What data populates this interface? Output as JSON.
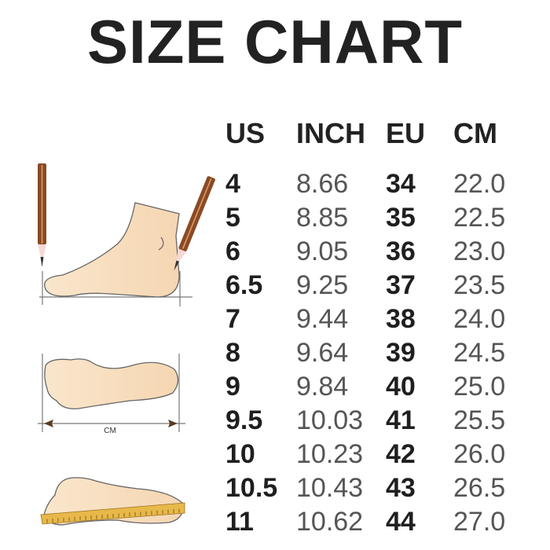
{
  "title": "SIZE CHART",
  "headers": {
    "us": "US",
    "inch": "INCH",
    "eu": "EU",
    "cm": "CM"
  },
  "rows": [
    {
      "us": "4",
      "inch": "8.66",
      "eu": "34",
      "cm": "22.0"
    },
    {
      "us": "5",
      "inch": "8.85",
      "eu": "35",
      "cm": "22.5"
    },
    {
      "us": "6",
      "inch": "9.05",
      "eu": "36",
      "cm": "23.0"
    },
    {
      "us": "6.5",
      "inch": "9.25",
      "eu": "37",
      "cm": "23.5"
    },
    {
      "us": "7",
      "inch": "9.44",
      "eu": "38",
      "cm": "24.0"
    },
    {
      "us": "8",
      "inch": "9.64",
      "eu": "39",
      "cm": "24.5"
    },
    {
      "us": "9",
      "inch": "9.84",
      "eu": "40",
      "cm": "25.0"
    },
    {
      "us": "9.5",
      "inch": "10.03",
      "eu": "41",
      "cm": "25.5"
    },
    {
      "us": "10",
      "inch": "10.23",
      "eu": "42",
      "cm": "26.0"
    },
    {
      "us": "10.5",
      "inch": "10.43",
      "eu": "43",
      "cm": "26.5"
    },
    {
      "us": "11",
      "inch": "10.62",
      "eu": "44",
      "cm": "27.0"
    }
  ],
  "illustration": {
    "measure_label": "CM"
  },
  "colors": {
    "skin": "#f8dfc0",
    "outline": "#6b6b6b",
    "pencil": "#8a4a24",
    "ruler": "#e8b84a"
  }
}
